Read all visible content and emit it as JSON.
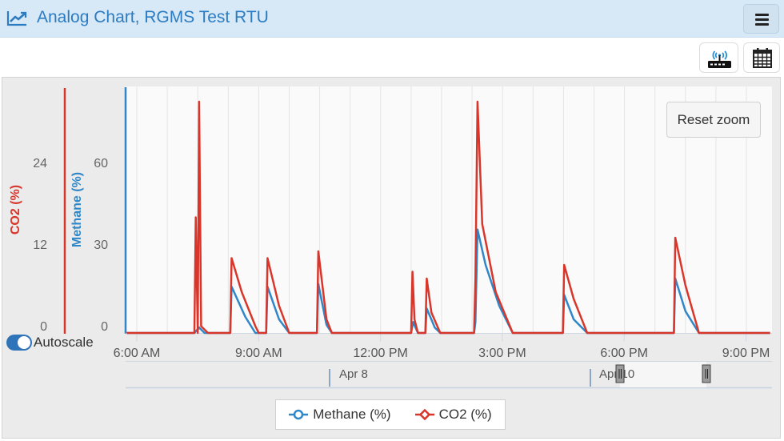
{
  "header": {
    "title": "Analog Chart, RGMS Test RTU",
    "title_icon": "line-chart-icon",
    "menu_icon": "hamburger-menu-icon"
  },
  "toolbar": {
    "buttons": [
      {
        "icon": "rtu-router-icon",
        "label": ""
      },
      {
        "icon": "calendar-icon",
        "label": ""
      }
    ]
  },
  "chart": {
    "reset_zoom_label": "Reset zoom",
    "autoscale_label": "Autoscale",
    "autoscale_on": true,
    "navigator": {
      "labels": [
        "Apr 8",
        "Apr 10"
      ]
    },
    "legend": [
      {
        "label": "Methane (%)",
        "color": "#2f86c8"
      },
      {
        "label": "CO2 (%)",
        "color": "#d9362b"
      }
    ]
  },
  "colors": {
    "accent": "#2b7cc2",
    "methane": "#2f86c8",
    "co2": "#d9362b",
    "header_bg": "#d7e8f6"
  },
  "chart_data": {
    "type": "line",
    "title": "Analog Chart, RGMS Test RTU",
    "xlabel": "",
    "x_ticks": [
      "6:00 AM",
      "9:00 AM",
      "12:00 PM",
      "3:00 PM",
      "6:00 PM",
      "9:00 PM"
    ],
    "y_axes": [
      {
        "name": "CO2 (%)",
        "ticks": [
          0,
          12,
          24
        ],
        "color": "#d9362b",
        "range": [
          0,
          34
        ]
      },
      {
        "name": "Methane (%)",
        "ticks": [
          0,
          30,
          60
        ],
        "color": "#2f86c8",
        "range": [
          0,
          88
        ]
      }
    ],
    "legend_position": "bottom",
    "grid": true,
    "series": [
      {
        "name": "Methane (%)",
        "axis": "Methane (%)",
        "points": [
          [
            "05:45",
            0
          ],
          [
            "07:25",
            0
          ],
          [
            "07:32",
            2
          ],
          [
            "07:40",
            0
          ],
          [
            "08:18",
            0
          ],
          [
            "08:20",
            17
          ],
          [
            "08:40",
            6
          ],
          [
            "08:55",
            0
          ],
          [
            "09:11",
            0
          ],
          [
            "09:13",
            17
          ],
          [
            "09:30",
            5
          ],
          [
            "09:45",
            0
          ],
          [
            "10:26",
            0
          ],
          [
            "10:28",
            18
          ],
          [
            "10:40",
            3
          ],
          [
            "10:48",
            0
          ],
          [
            "12:45",
            0
          ],
          [
            "12:48",
            4
          ],
          [
            "12:55",
            0
          ],
          [
            "13:06",
            0
          ],
          [
            "13:08",
            9
          ],
          [
            "13:20",
            2
          ],
          [
            "13:28",
            0
          ],
          [
            "14:18",
            0
          ],
          [
            "14:20",
            4
          ],
          [
            "14:23",
            38
          ],
          [
            "14:35",
            25
          ],
          [
            "14:55",
            10
          ],
          [
            "15:15",
            0
          ],
          [
            "16:29",
            0
          ],
          [
            "16:31",
            14
          ],
          [
            "16:45",
            5
          ],
          [
            "17:05",
            0
          ],
          [
            "19:13",
            0
          ],
          [
            "19:15",
            20
          ],
          [
            "19:30",
            8
          ],
          [
            "19:50",
            0
          ],
          [
            "21:35",
            0
          ]
        ]
      },
      {
        "name": "CO2 (%)",
        "axis": "CO2 (%)",
        "points": [
          [
            "05:45",
            0
          ],
          [
            "07:25",
            0
          ],
          [
            "07:27",
            17
          ],
          [
            "07:30",
            0
          ],
          [
            "07:32",
            34
          ],
          [
            "07:35",
            1
          ],
          [
            "07:45",
            0
          ],
          [
            "08:18",
            0
          ],
          [
            "08:20",
            11
          ],
          [
            "08:35",
            6
          ],
          [
            "08:55",
            1
          ],
          [
            "09:00",
            0
          ],
          [
            "09:11",
            0
          ],
          [
            "09:13",
            11
          ],
          [
            "09:30",
            4
          ],
          [
            "09:45",
            0
          ],
          [
            "10:26",
            0
          ],
          [
            "10:28",
            12
          ],
          [
            "10:40",
            2
          ],
          [
            "10:48",
            0
          ],
          [
            "12:45",
            0
          ],
          [
            "12:47",
            9
          ],
          [
            "12:50",
            2
          ],
          [
            "12:55",
            0
          ],
          [
            "13:06",
            0
          ],
          [
            "13:08",
            8
          ],
          [
            "13:15",
            3
          ],
          [
            "13:28",
            0
          ],
          [
            "14:18",
            0
          ],
          [
            "14:20",
            8
          ],
          [
            "14:23",
            34
          ],
          [
            "14:30",
            16
          ],
          [
            "14:50",
            6
          ],
          [
            "15:15",
            0
          ],
          [
            "16:29",
            0
          ],
          [
            "16:31",
            10
          ],
          [
            "16:45",
            5
          ],
          [
            "17:05",
            0
          ],
          [
            "19:13",
            0
          ],
          [
            "19:15",
            14
          ],
          [
            "19:30",
            7
          ],
          [
            "19:50",
            0
          ],
          [
            "21:35",
            0
          ]
        ]
      }
    ]
  }
}
